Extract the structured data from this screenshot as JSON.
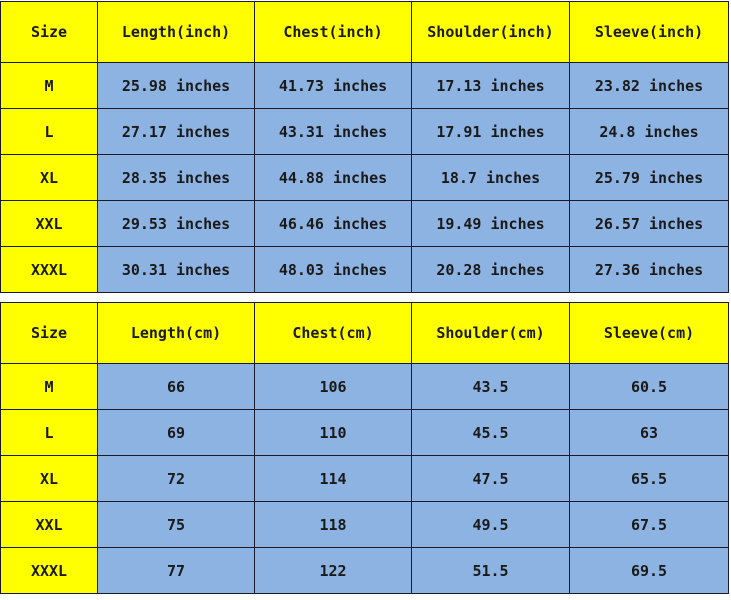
{
  "inch_table": {
    "headers": [
      "Size",
      "Length(inch)",
      "Chest(inch)",
      "Shoulder(inch)",
      "Sleeve(inch)"
    ],
    "rows": [
      [
        "M",
        "25.98 inches",
        "41.73 inches",
        "17.13 inches",
        "23.82 inches"
      ],
      [
        "L",
        "27.17 inches",
        "43.31 inches",
        "17.91 inches",
        "24.8 inches"
      ],
      [
        "XL",
        "28.35 inches",
        "44.88 inches",
        "18.7 inches",
        "25.79 inches"
      ],
      [
        "XXL",
        "29.53 inches",
        "46.46 inches",
        "19.49 inches",
        "26.57 inches"
      ],
      [
        "XXXL",
        "30.31 inches",
        "48.03 inches",
        "20.28 inches",
        "27.36 inches"
      ]
    ]
  },
  "cm_table": {
    "headers": [
      "Size",
      "Length(cm)",
      "Chest(cm)",
      "Shoulder(cm)",
      "Sleeve(cm)"
    ],
    "rows": [
      [
        "M",
        "66",
        "106",
        "43.5",
        "60.5"
      ],
      [
        "L",
        "69",
        "110",
        "45.5",
        "63"
      ],
      [
        "XL",
        "72",
        "114",
        "47.5",
        "65.5"
      ],
      [
        "XXL",
        "75",
        "118",
        "49.5",
        "67.5"
      ],
      [
        "XXXL",
        "77",
        "122",
        "51.5",
        "69.5"
      ]
    ]
  },
  "colors": {
    "header": "#ffff00",
    "value": "#8db3e2"
  }
}
